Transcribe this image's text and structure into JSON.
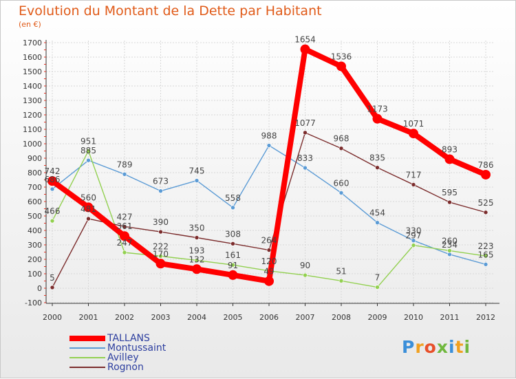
{
  "chart_data": {
    "type": "line",
    "title": "Evolution du Montant de la Dette par Habitant",
    "subtitle": "(en €)",
    "xlabel": "",
    "ylabel": "",
    "ylim": [
      -100,
      1700
    ],
    "yticks": [
      -100,
      0,
      100,
      200,
      300,
      400,
      500,
      600,
      700,
      800,
      900,
      1000,
      1100,
      1200,
      1300,
      1400,
      1500,
      1600,
      1700
    ],
    "categories": [
      "2000",
      "2001",
      "2002",
      "2003",
      "2004",
      "2005",
      "2006",
      "2007",
      "2008",
      "2009",
      "2010",
      "2011",
      "2012"
    ],
    "grid": true,
    "legend_position": "bottom-left",
    "series": [
      {
        "name": "Montussaint",
        "color": "#5b9bd5",
        "values": [
          686,
          885,
          789,
          673,
          745,
          558,
          988,
          833,
          660,
          454,
          330,
          234,
          165
        ]
      },
      {
        "name": "Avilley",
        "color": "#92d050",
        "values": [
          466,
          951,
          247,
          222,
          193,
          161,
          120,
          90,
          51,
          7,
          297,
          260,
          223
        ]
      },
      {
        "name": "Rognon",
        "color": "#7b2c2c",
        "values": [
          5,
          481,
          427,
          390,
          350,
          308,
          264,
          1077,
          968,
          835,
          717,
          595,
          525
        ]
      },
      {
        "name": "TALLANS",
        "color": "#ff0000",
        "values": [
          742,
          560,
          361,
          170,
          132,
          91,
          49,
          1654,
          1536,
          1173,
          1071,
          893,
          786
        ]
      }
    ],
    "legend_order": [
      "TALLANS",
      "Montussaint",
      "Avilley",
      "Rognon"
    ],
    "labels": [
      {
        "series": "Montussaint",
        "text": "686",
        "i": 0
      },
      {
        "series": "Montussaint",
        "text": "885",
        "i": 1
      },
      {
        "series": "Montussaint",
        "text": "789",
        "i": 2
      },
      {
        "series": "Montussaint",
        "text": "673",
        "i": 3
      },
      {
        "series": "Montussaint",
        "text": "745",
        "i": 4
      },
      {
        "series": "Montussaint",
        "text": "558",
        "i": 5
      },
      {
        "series": "Montussaint",
        "text": "988",
        "i": 6
      },
      {
        "series": "Montussaint",
        "text": "833",
        "i": 7
      },
      {
        "series": "Montussaint",
        "text": "660",
        "i": 8
      },
      {
        "series": "Montussaint",
        "text": "454",
        "i": 9
      },
      {
        "series": "Montussaint",
        "text": "330",
        "i": 10
      },
      {
        "series": "Montussaint",
        "text": "234",
        "i": 11
      },
      {
        "series": "Montussaint",
        "text": "165",
        "i": 12
      },
      {
        "series": "Avilley",
        "text": "466",
        "i": 0
      },
      {
        "series": "Avilley",
        "text": "951",
        "i": 1
      },
      {
        "series": "Avilley",
        "text": "247",
        "i": 2
      },
      {
        "series": "Avilley",
        "text": "222",
        "i": 3
      },
      {
        "series": "Avilley",
        "text": "193",
        "i": 4
      },
      {
        "series": "Avilley",
        "text": "161",
        "i": 5
      },
      {
        "series": "Avilley",
        "text": "120",
        "i": 6
      },
      {
        "series": "Avilley",
        "text": "90",
        "i": 7
      },
      {
        "series": "Avilley",
        "text": "51",
        "i": 8
      },
      {
        "series": "Avilley",
        "text": "7",
        "i": 9
      },
      {
        "series": "Avilley",
        "text": "297",
        "i": 10
      },
      {
        "series": "Avilley",
        "text": "260",
        "i": 11
      },
      {
        "series": "Avilley",
        "text": "223",
        "i": 12
      },
      {
        "series": "Rognon",
        "text": "5",
        "i": 0
      },
      {
        "series": "Rognon",
        "text": "481",
        "i": 1
      },
      {
        "series": "Rognon",
        "text": "427",
        "i": 2
      },
      {
        "series": "Rognon",
        "text": "390",
        "i": 3
      },
      {
        "series": "Rognon",
        "text": "350",
        "i": 4
      },
      {
        "series": "Rognon",
        "text": "308",
        "i": 5
      },
      {
        "series": "Rognon",
        "text": "264",
        "i": 6
      },
      {
        "series": "Rognon",
        "text": "1077",
        "i": 7
      },
      {
        "series": "Rognon",
        "text": "968",
        "i": 8
      },
      {
        "series": "Rognon",
        "text": "835",
        "i": 9
      },
      {
        "series": "Rognon",
        "text": "717",
        "i": 10
      },
      {
        "series": "Rognon",
        "text": "595",
        "i": 11
      },
      {
        "series": "Rognon",
        "text": "525",
        "i": 12
      },
      {
        "series": "TALLANS",
        "text": "742",
        "i": 0
      },
      {
        "series": "TALLANS",
        "text": "560",
        "i": 1
      },
      {
        "series": "TALLANS",
        "text": "361",
        "i": 2
      },
      {
        "series": "TALLANS",
        "text": "170",
        "i": 3
      },
      {
        "series": "TALLANS",
        "text": "132",
        "i": 4
      },
      {
        "series": "TALLANS",
        "text": "91",
        "i": 5
      },
      {
        "series": "TALLANS",
        "text": "49",
        "i": 6
      },
      {
        "series": "TALLANS",
        "text": "1654",
        "i": 7
      },
      {
        "series": "TALLANS",
        "text": "1536",
        "i": 8
      },
      {
        "series": "TALLANS",
        "text": "1173",
        "i": 9
      },
      {
        "series": "TALLANS",
        "text": "1071",
        "i": 10
      },
      {
        "series": "TALLANS",
        "text": "893",
        "i": 11
      },
      {
        "series": "TALLANS",
        "text": "786",
        "i": 12
      }
    ]
  },
  "logo": {
    "letters": [
      {
        "ch": "P",
        "color": "#3b8fd9"
      },
      {
        "ch": "r",
        "color": "#f0a020"
      },
      {
        "ch": "o",
        "color": "#e8502a"
      },
      {
        "ch": "x",
        "color": "#70b83e"
      },
      {
        "ch": "i",
        "color": "#3b8fd9"
      },
      {
        "ch": "t",
        "color": "#f0a020"
      },
      {
        "ch": "i",
        "color": "#70b83e"
      }
    ]
  }
}
